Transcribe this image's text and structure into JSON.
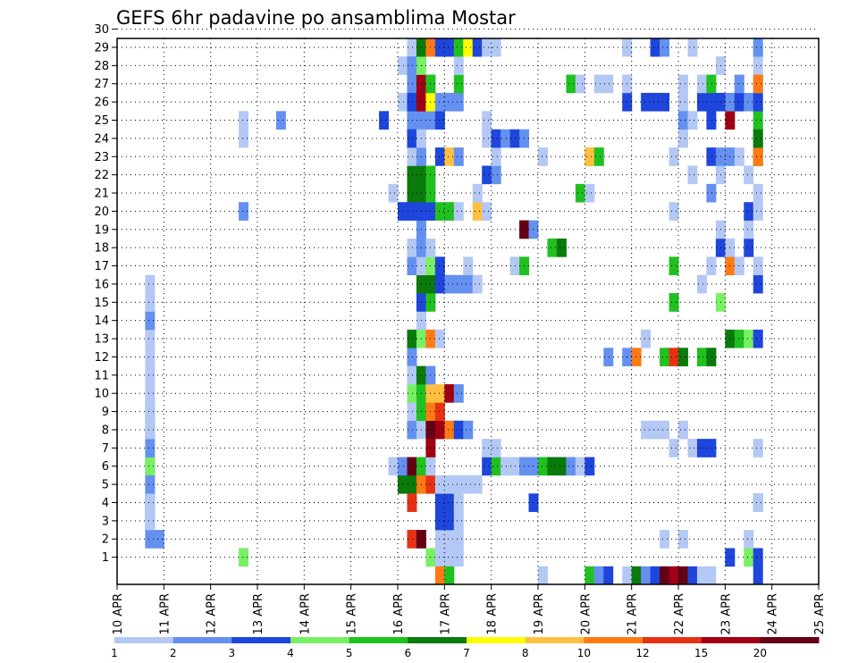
{
  "chart_data": {
    "type": "heatmap",
    "title": "GEFS 6hr padavine po ansamblima Mostar",
    "xlabel": "",
    "ylabel": "",
    "x_ticks": [
      "10 APR",
      "11 APR",
      "12 APR",
      "13 APR",
      "14 APR",
      "15 APR",
      "16 APR",
      "17 APR",
      "18 APR",
      "19 APR",
      "20 APR",
      "21 APR",
      "22 APR",
      "23 APR",
      "24 APR",
      "25 APR"
    ],
    "x_range_days": [
      0,
      15
    ],
    "y_ticks": [
      1,
      2,
      3,
      4,
      5,
      6,
      7,
      8,
      9,
      10,
      11,
      12,
      13,
      14,
      15,
      16,
      17,
      18,
      19,
      20,
      21,
      22,
      23,
      24,
      25,
      26,
      27,
      28,
      29,
      30
    ],
    "grid": true,
    "colorbar": {
      "labels": [
        "1",
        "2",
        "3",
        "4",
        "5",
        "6",
        "7",
        "8",
        "10",
        "12",
        "15",
        "20"
      ],
      "colors": [
        "#b4c8f5",
        "#6490f0",
        "#1e46dc",
        "#78f064",
        "#20c020",
        "#0a7a0a",
        "#ffff00",
        "#ffc040",
        "#ff7a14",
        "#e63214",
        "#a00014",
        "#640014"
      ]
    },
    "cells": [
      [
        0.6,
        1,
        2
      ],
      [
        0.8,
        1,
        2
      ],
      [
        0.6,
        2,
        3
      ],
      [
        0.6,
        2,
        2
      ],
      [
        0.6,
        2,
        1
      ],
      [
        0.6,
        3,
        4
      ],
      [
        0.6,
        3,
        3
      ],
      [
        0.6,
        3,
        2
      ],
      [
        0.6,
        3,
        1
      ],
      [
        0.6,
        7,
        2
      ],
      [
        0.6,
        4,
        1
      ],
      [
        0.6,
        5,
        3
      ],
      [
        0.6,
        5,
        4
      ],
      [
        0.6,
        6,
        2
      ],
      [
        0.6,
        7,
        1
      ],
      [
        0.6,
        4,
        2
      ],
      [
        0.6,
        8,
        5
      ],
      [
        0.6,
        8,
        1
      ],
      [
        0.6,
        9,
        1
      ],
      [
        0.6,
        10,
        1
      ],
      [
        0.6,
        11,
        1
      ],
      [
        0.6,
        12,
        1
      ],
      [
        0.6,
        13,
        2
      ],
      [
        0.6,
        14,
        1
      ],
      [
        0.6,
        15,
        1
      ],
      [
        2.6,
        0,
        4
      ],
      [
        2.6,
        19,
        2
      ],
      [
        2.6,
        23,
        1
      ],
      [
        2.6,
        24,
        1
      ],
      [
        3.4,
        24,
        2
      ],
      [
        5.6,
        24,
        3
      ],
      [
        5.6,
        29,
        2
      ],
      [
        5.8,
        29,
        3
      ],
      [
        5.8,
        20,
        1
      ],
      [
        6.0,
        19,
        3
      ],
      [
        6.0,
        27,
        1
      ],
      [
        6.0,
        25,
        1
      ],
      [
        6.0,
        29,
        3
      ],
      [
        5.8,
        5,
        1
      ],
      [
        6.0,
        4,
        6
      ],
      [
        6.0,
        5,
        2
      ],
      [
        6.2,
        4,
        6
      ],
      [
        6.2,
        5,
        12
      ],
      [
        6.2,
        3,
        10
      ],
      [
        6.2,
        11,
        2
      ],
      [
        6.2,
        12,
        6
      ],
      [
        6.2,
        16,
        2
      ],
      [
        6.2,
        17,
        1
      ],
      [
        6.2,
        20,
        6
      ],
      [
        6.2,
        21,
        6
      ],
      [
        6.2,
        22,
        1
      ],
      [
        6.2,
        24,
        2
      ],
      [
        6.2,
        26,
        2
      ],
      [
        6.2,
        28,
        1
      ],
      [
        6.2,
        29,
        3
      ],
      [
        6.2,
        19,
        3
      ],
      [
        6.2,
        1,
        10
      ],
      [
        6.2,
        7,
        2
      ],
      [
        6.2,
        8,
        1
      ],
      [
        6.2,
        9,
        4
      ],
      [
        6.2,
        10,
        1
      ],
      [
        6.2,
        27,
        2
      ],
      [
        6.2,
        23,
        3
      ],
      [
        6.2,
        25,
        3
      ],
      [
        6.4,
        4,
        9
      ],
      [
        6.4,
        1,
        12
      ],
      [
        6.4,
        5,
        5
      ],
      [
        6.4,
        7,
        1
      ],
      [
        6.4,
        8,
        5
      ],
      [
        6.4,
        9,
        5
      ],
      [
        6.4,
        10,
        6
      ],
      [
        6.4,
        12,
        4
      ],
      [
        6.4,
        13,
        1
      ],
      [
        6.4,
        14,
        3
      ],
      [
        6.4,
        15,
        6
      ],
      [
        6.4,
        16,
        1
      ],
      [
        6.4,
        17,
        2
      ],
      [
        6.4,
        18,
        2
      ],
      [
        6.4,
        19,
        3
      ],
      [
        6.4,
        20,
        6
      ],
      [
        6.4,
        21,
        6
      ],
      [
        6.4,
        22,
        2
      ],
      [
        6.4,
        24,
        2
      ],
      [
        6.4,
        25,
        11
      ],
      [
        6.4,
        26,
        11
      ],
      [
        6.4,
        27,
        4
      ],
      [
        6.4,
        28,
        6
      ],
      [
        6.4,
        29,
        4
      ],
      [
        6.4,
        23,
        1
      ],
      [
        6.4,
        25,
        11
      ],
      [
        6.6,
        0,
        4
      ],
      [
        6.6,
        4,
        10
      ],
      [
        6.6,
        5,
        1
      ],
      [
        6.6,
        6,
        11
      ],
      [
        6.6,
        7,
        12
      ],
      [
        6.6,
        8,
        9
      ],
      [
        6.6,
        9,
        8
      ],
      [
        6.6,
        10,
        2
      ],
      [
        6.6,
        12,
        9
      ],
      [
        6.6,
        14,
        5
      ],
      [
        6.6,
        15,
        6
      ],
      [
        6.6,
        16,
        4
      ],
      [
        6.6,
        17,
        1
      ],
      [
        6.6,
        19,
        3
      ],
      [
        6.6,
        20,
        5
      ],
      [
        6.6,
        21,
        5
      ],
      [
        6.6,
        24,
        2
      ],
      [
        6.6,
        25,
        7
      ],
      [
        6.6,
        26,
        5
      ],
      [
        6.6,
        28,
        9
      ],
      [
        6.6,
        29,
        5
      ],
      [
        6.8,
        0,
        1
      ],
      [
        6.8,
        1,
        1
      ],
      [
        6.8,
        2,
        3
      ],
      [
        6.8,
        3,
        3
      ],
      [
        6.8,
        4,
        1
      ],
      [
        6.8,
        7,
        11
      ],
      [
        6.8,
        8,
        10
      ],
      [
        6.8,
        9,
        8
      ],
      [
        6.8,
        12,
        1
      ],
      [
        6.8,
        15,
        3
      ],
      [
        6.8,
        16,
        3
      ],
      [
        6.8,
        19,
        5
      ],
      [
        6.8,
        22,
        3
      ],
      [
        6.8,
        24,
        3
      ],
      [
        6.8,
        25,
        2
      ],
      [
        6.8,
        28,
        3
      ],
      [
        6.8,
        29,
        2
      ],
      [
        6.8,
        -1,
        9
      ],
      [
        7.0,
        0,
        1
      ],
      [
        7.0,
        1,
        1
      ],
      [
        7.0,
        2,
        3
      ],
      [
        7.0,
        3,
        3
      ],
      [
        7.0,
        4,
        1
      ],
      [
        7.0,
        7,
        9
      ],
      [
        7.0,
        9,
        11
      ],
      [
        7.0,
        15,
        2
      ],
      [
        7.0,
        19,
        5
      ],
      [
        7.0,
        22,
        8
      ],
      [
        7.0,
        25,
        2
      ],
      [
        7.0,
        28,
        3
      ],
      [
        7.0,
        29,
        3
      ],
      [
        7.0,
        -1,
        5
      ],
      [
        7.2,
        0,
        1
      ],
      [
        7.2,
        1,
        1
      ],
      [
        7.2,
        2,
        1
      ],
      [
        7.2,
        3,
        1
      ],
      [
        7.2,
        4,
        1
      ],
      [
        7.2,
        7,
        3
      ],
      [
        7.2,
        9,
        2
      ],
      [
        7.2,
        15,
        2
      ],
      [
        7.2,
        19,
        1
      ],
      [
        7.2,
        22,
        2
      ],
      [
        7.2,
        25,
        2
      ],
      [
        7.2,
        26,
        5
      ],
      [
        7.2,
        27,
        1
      ],
      [
        7.2,
        28,
        5
      ],
      [
        7.2,
        29,
        2
      ],
      [
        7.2,
        4,
        1
      ],
      [
        7.4,
        4,
        1
      ],
      [
        7.4,
        7,
        2
      ],
      [
        7.4,
        15,
        2
      ],
      [
        7.4,
        16,
        1
      ],
      [
        7.4,
        28,
        7
      ],
      [
        7.4,
        29,
        1
      ],
      [
        7.6,
        4,
        1
      ],
      [
        7.6,
        15,
        1
      ],
      [
        7.6,
        19,
        8
      ],
      [
        7.6,
        20,
        1
      ],
      [
        7.6,
        28,
        3
      ],
      [
        7.8,
        5,
        3
      ],
      [
        7.8,
        19,
        1
      ],
      [
        7.8,
        21,
        3
      ],
      [
        7.8,
        23,
        1
      ],
      [
        7.8,
        28,
        1
      ],
      [
        7.8,
        24,
        1
      ],
      [
        7.8,
        6,
        1
      ],
      [
        8.0,
        5,
        5
      ],
      [
        8.0,
        21,
        2
      ],
      [
        8.0,
        22,
        1
      ],
      [
        8.0,
        23,
        3
      ],
      [
        8.0,
        28,
        1
      ],
      [
        8.0,
        6,
        1
      ],
      [
        8.2,
        23,
        2
      ],
      [
        8.2,
        5,
        1
      ],
      [
        8.4,
        5,
        1
      ],
      [
        8.4,
        16,
        1
      ],
      [
        8.4,
        23,
        3
      ],
      [
        8.6,
        5,
        2
      ],
      [
        8.6,
        16,
        5
      ],
      [
        8.6,
        18,
        12
      ],
      [
        8.6,
        23,
        2
      ],
      [
        8.8,
        5,
        2
      ],
      [
        8.8,
        18,
        2
      ],
      [
        8.8,
        3,
        3
      ],
      [
        9.0,
        5,
        5
      ],
      [
        9.0,
        -1,
        1
      ],
      [
        9.0,
        22,
        1
      ],
      [
        9.2,
        5,
        6
      ],
      [
        9.2,
        17,
        5
      ],
      [
        9.4,
        5,
        6
      ],
      [
        9.4,
        17,
        6
      ],
      [
        9.6,
        5,
        2
      ],
      [
        9.6,
        26,
        5
      ],
      [
        9.8,
        5,
        1
      ],
      [
        9.8,
        26,
        1
      ],
      [
        9.8,
        20,
        5
      ],
      [
        10.0,
        5,
        3
      ],
      [
        10.0,
        20,
        1
      ],
      [
        10.0,
        -1,
        5
      ],
      [
        10.0,
        22,
        10
      ],
      [
        10.0,
        22,
        8
      ],
      [
        10.2,
        22,
        5
      ],
      [
        10.2,
        -1,
        1
      ],
      [
        10.2,
        -1,
        2
      ],
      [
        10.2,
        26,
        1
      ],
      [
        10.4,
        11,
        2
      ],
      [
        10.4,
        -1,
        3
      ],
      [
        10.4,
        26,
        1
      ],
      [
        10.8,
        11,
        2
      ],
      [
        10.8,
        25,
        3
      ],
      [
        10.8,
        26,
        1
      ],
      [
        10.8,
        28,
        1
      ],
      [
        10.8,
        -1,
        1
      ],
      [
        11.0,
        11,
        9
      ],
      [
        11.0,
        -1,
        6
      ],
      [
        11.2,
        7,
        1
      ],
      [
        11.2,
        -1,
        2
      ],
      [
        11.2,
        25,
        3
      ],
      [
        11.2,
        12,
        1
      ],
      [
        11.4,
        7,
        1
      ],
      [
        11.4,
        -1,
        3
      ],
      [
        11.4,
        25,
        3
      ],
      [
        11.4,
        28,
        3
      ],
      [
        11.6,
        7,
        1
      ],
      [
        11.6,
        1,
        1
      ],
      [
        11.6,
        11,
        5
      ],
      [
        11.6,
        -1,
        12
      ],
      [
        11.6,
        25,
        3
      ],
      [
        11.6,
        28,
        2
      ],
      [
        11.8,
        11,
        10
      ],
      [
        11.8,
        14,
        5
      ],
      [
        11.8,
        22,
        1
      ],
      [
        11.8,
        -1,
        11
      ],
      [
        11.8,
        6,
        1
      ],
      [
        11.8,
        16,
        5
      ],
      [
        11.8,
        19,
        1
      ],
      [
        12.0,
        1,
        1
      ],
      [
        12.0,
        7,
        1
      ],
      [
        12.0,
        11,
        6
      ],
      [
        12.0,
        -1,
        12
      ],
      [
        12.0,
        23,
        1
      ],
      [
        12.0,
        25,
        1
      ],
      [
        12.0,
        26,
        1
      ],
      [
        12.0,
        24,
        2
      ],
      [
        12.0,
        29,
        1
      ],
      [
        12.2,
        -1,
        3
      ],
      [
        12.2,
        6,
        1
      ],
      [
        12.2,
        21,
        1
      ],
      [
        12.2,
        24,
        1
      ],
      [
        12.2,
        28,
        1
      ],
      [
        12.4,
        6,
        3
      ],
      [
        12.4,
        11,
        5
      ],
      [
        12.4,
        15,
        1
      ],
      [
        12.4,
        25,
        3
      ],
      [
        12.4,
        26,
        1
      ],
      [
        12.4,
        -1,
        1
      ],
      [
        12.6,
        6,
        3
      ],
      [
        12.6,
        11,
        6
      ],
      [
        12.6,
        16,
        1
      ],
      [
        12.6,
        20,
        2
      ],
      [
        12.6,
        22,
        3
      ],
      [
        12.6,
        24,
        3
      ],
      [
        12.6,
        25,
        3
      ],
      [
        12.6,
        26,
        5
      ],
      [
        12.6,
        -1,
        1
      ],
      [
        12.8,
        14,
        4
      ],
      [
        12.8,
        17,
        3
      ],
      [
        12.8,
        18,
        1
      ],
      [
        12.8,
        21,
        1
      ],
      [
        12.8,
        22,
        2
      ],
      [
        12.8,
        25,
        3
      ],
      [
        12.8,
        27,
        1
      ],
      [
        12.8,
        29,
        1
      ],
      [
        13.0,
        0,
        3
      ],
      [
        13.0,
        12,
        6
      ],
      [
        13.0,
        16,
        9
      ],
      [
        13.0,
        17,
        1
      ],
      [
        13.0,
        22,
        2
      ],
      [
        13.0,
        24,
        11
      ],
      [
        13.0,
        25,
        2
      ],
      [
        13.0,
        29,
        5
      ],
      [
        13.2,
        12,
        5
      ],
      [
        13.2,
        16,
        1
      ],
      [
        13.2,
        22,
        1
      ],
      [
        13.2,
        25,
        3
      ],
      [
        13.2,
        26,
        2
      ],
      [
        13.4,
        0,
        4
      ],
      [
        13.4,
        12,
        4
      ],
      [
        13.4,
        17,
        3
      ],
      [
        13.4,
        18,
        1
      ],
      [
        13.4,
        19,
        3
      ],
      [
        13.4,
        21,
        1
      ],
      [
        13.4,
        25,
        2
      ],
      [
        13.4,
        29,
        1
      ],
      [
        13.4,
        1,
        1
      ],
      [
        13.6,
        12,
        3
      ],
      [
        13.6,
        -1,
        3
      ],
      [
        13.6,
        0,
        3
      ],
      [
        13.6,
        3,
        5
      ],
      [
        13.6,
        6,
        1
      ],
      [
        13.6,
        15,
        3
      ],
      [
        13.6,
        16,
        1
      ],
      [
        13.6,
        23,
        2
      ],
      [
        13.6,
        24,
        5
      ],
      [
        13.6,
        25,
        3
      ],
      [
        13.6,
        26,
        2
      ],
      [
        13.6,
        22,
        6
      ],
      [
        13.6,
        22,
        9
      ],
      [
        13.6,
        29,
        5
      ],
      [
        13.6,
        23,
        6
      ],
      [
        13.6,
        28,
        1
      ],
      [
        13.6,
        20,
        1
      ],
      [
        13.6,
        19,
        1
      ],
      [
        13.6,
        27,
        1
      ],
      [
        13.6,
        26,
        9
      ],
      [
        13.6,
        3,
        1
      ],
      [
        13.6,
        28,
        2
      ]
    ]
  }
}
